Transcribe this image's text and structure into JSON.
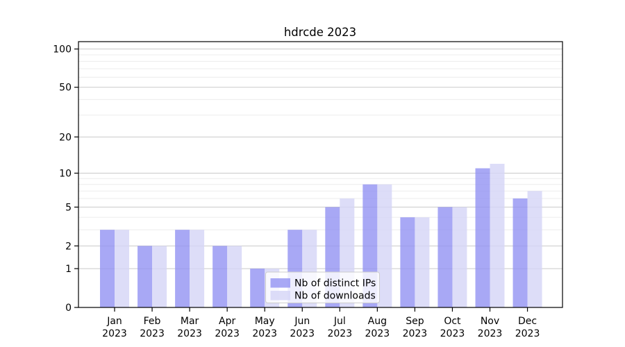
{
  "chart_data": {
    "type": "bar",
    "title": "hdrcde 2023",
    "categories": [
      "Jan",
      "Feb",
      "Mar",
      "Apr",
      "May",
      "Jun",
      "Jul",
      "Aug",
      "Sep",
      "Oct",
      "Nov",
      "Dec"
    ],
    "category_year": "2023",
    "series": [
      {
        "name": "Nb of distinct IPs",
        "values": [
          3,
          2,
          3,
          2,
          1,
          3,
          5,
          8,
          4,
          5,
          11,
          6
        ],
        "color": "#a8a8f4"
      },
      {
        "name": "Nb of downloads",
        "values": [
          3,
          2,
          3,
          2,
          1,
          3,
          6,
          8,
          4,
          5,
          12,
          7
        ],
        "color": "#dedef9"
      }
    ],
    "yscale": "log1p",
    "yticks": [
      0,
      1,
      2,
      5,
      10,
      20,
      50,
      100
    ],
    "yticks_minor": [
      3,
      4,
      6,
      7,
      8,
      9,
      30,
      40,
      60,
      70,
      80,
      90
    ],
    "ylim": [
      0,
      115
    ],
    "grid": "on",
    "legend_position": "lower-center",
    "colors": {
      "bar_dark_fill": "rgba(146,146,242,0.80)",
      "bar_light_fill": "rgba(214,214,247,0.82)",
      "grid_major": "#c9c9c9",
      "grid_minor": "#ececec",
      "axis": "#000000",
      "legend_border": "#cccccc",
      "legend_bg": "rgba(255,255,255,0.8)"
    }
  }
}
